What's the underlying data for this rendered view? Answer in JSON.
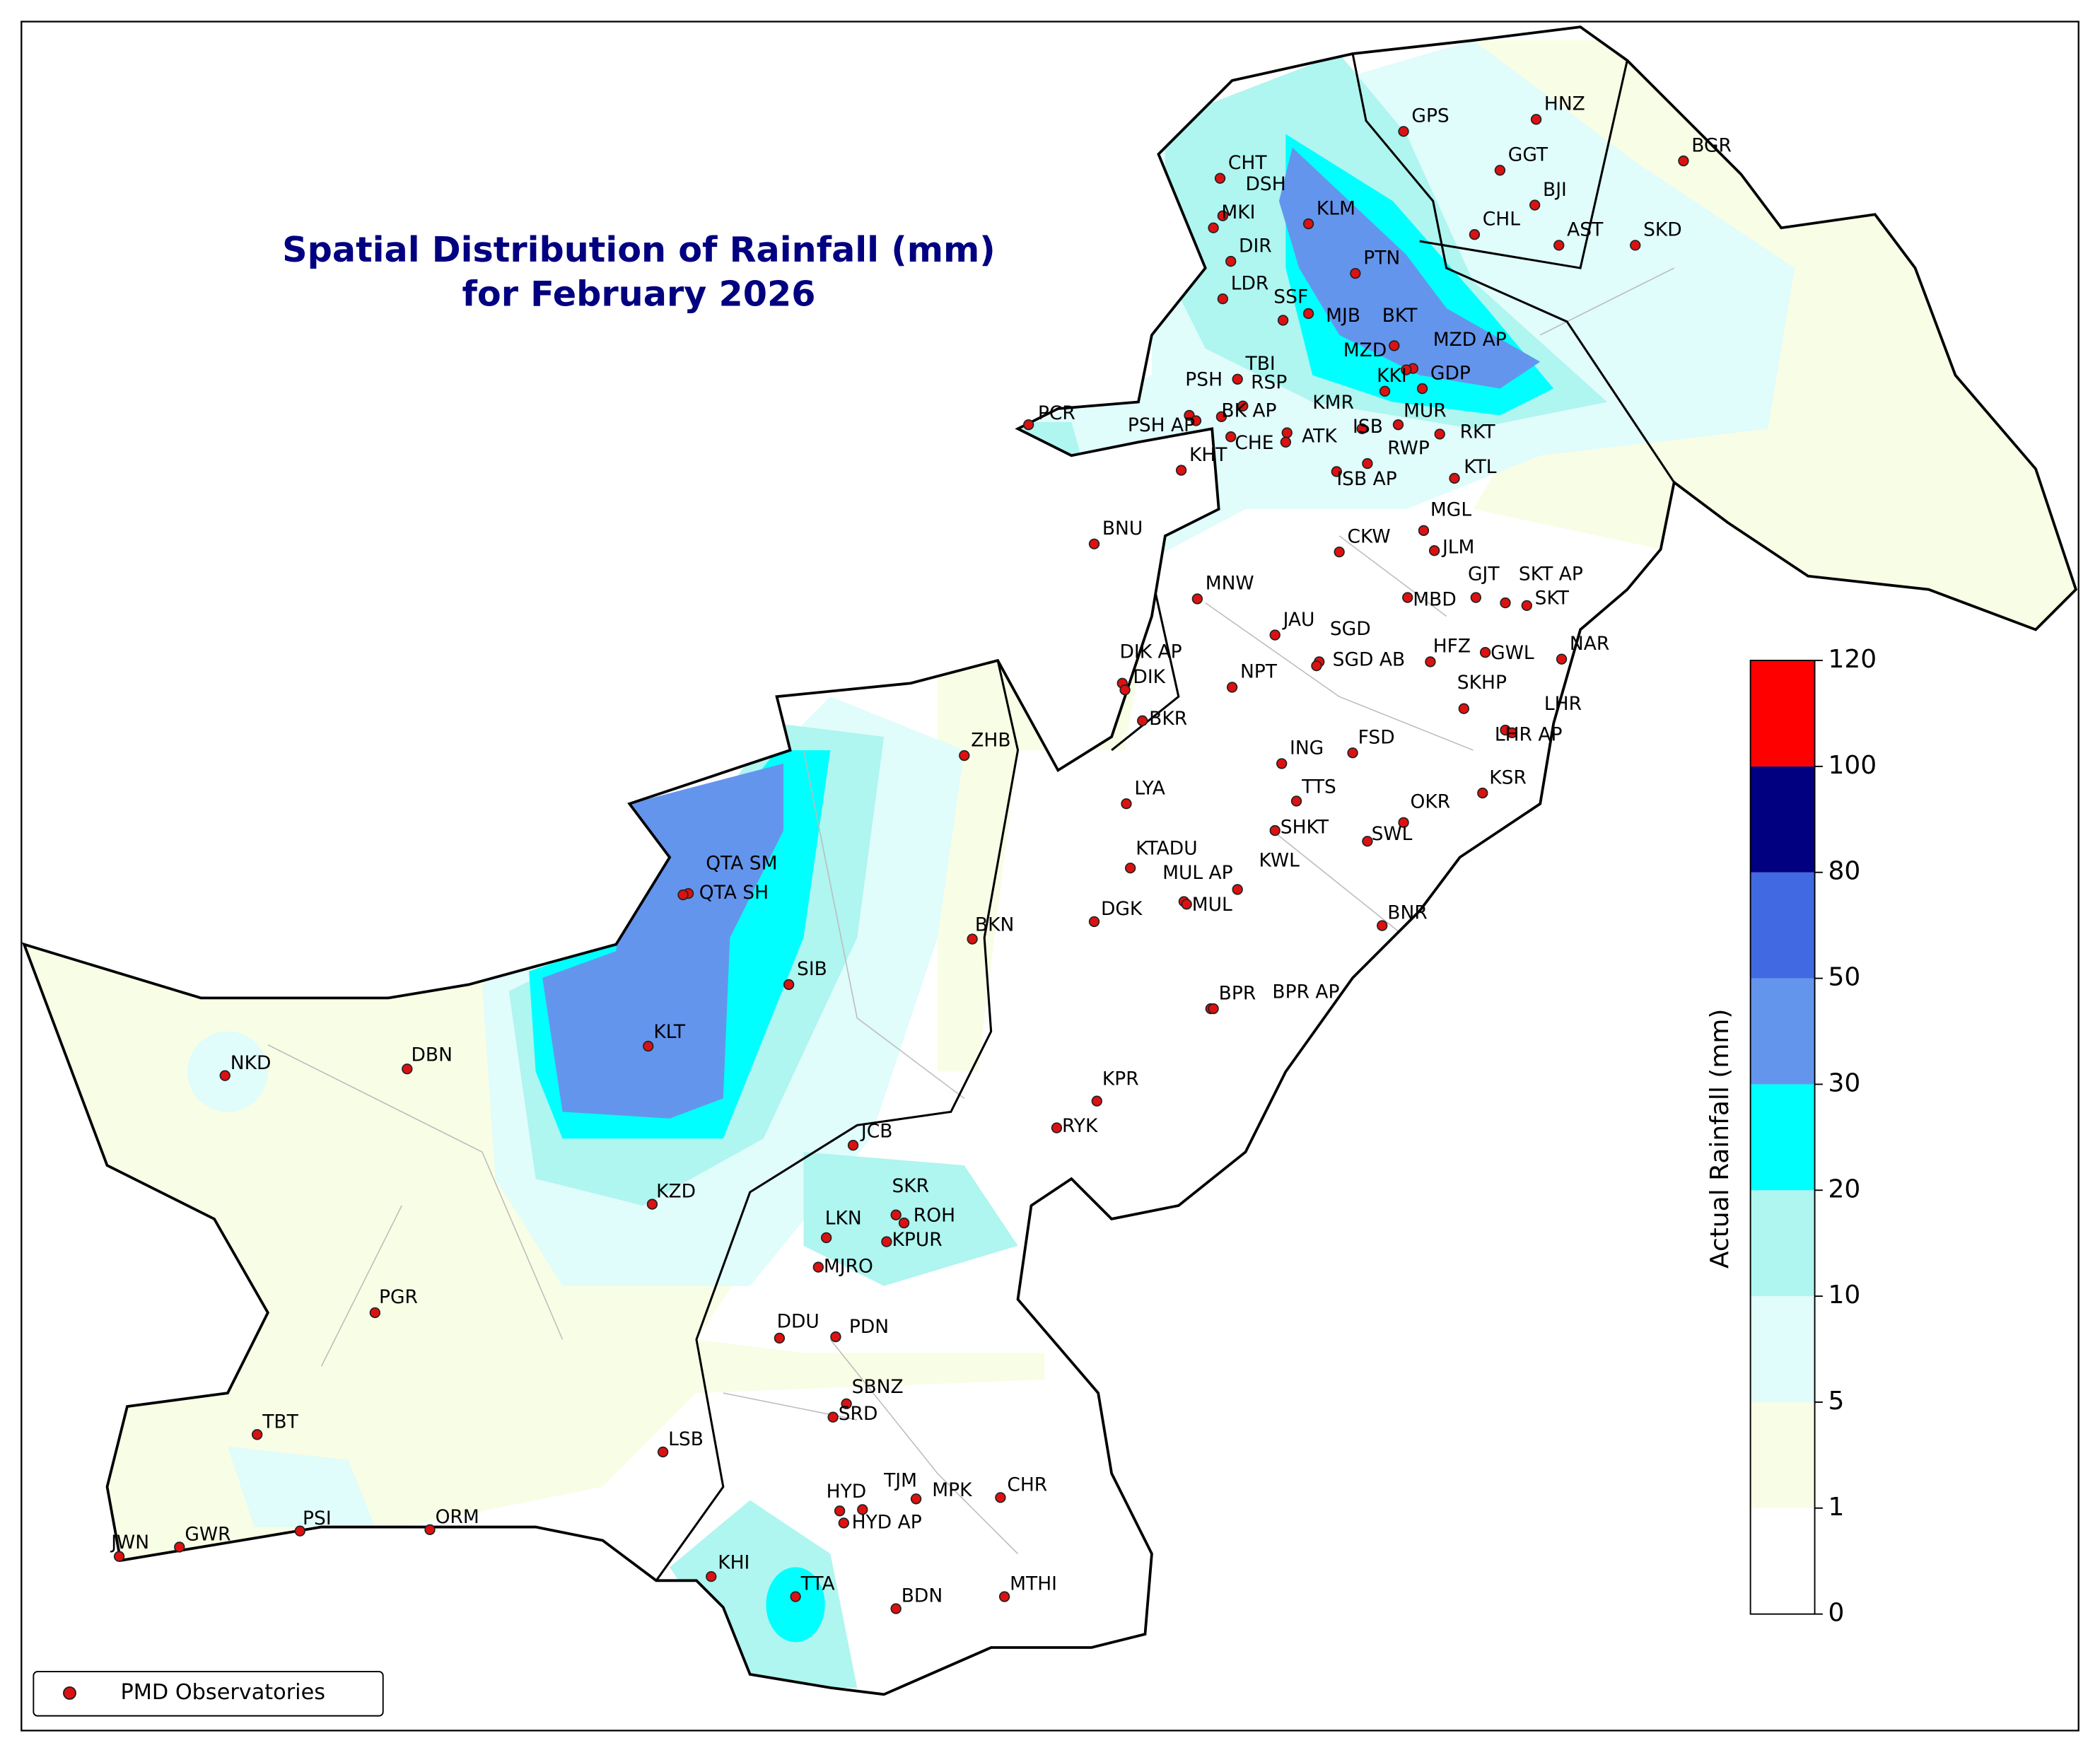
{
  "title": [
    "Spatial Distribution of Rainfall (mm)",
    "for February 2026"
  ],
  "colorbar": {
    "label": "Actual Rainfall (mm)",
    "ticks": [
      0,
      1,
      5,
      10,
      20,
      30,
      50,
      80,
      100,
      120
    ],
    "colors": [
      "#ffffff",
      "#f8fde6",
      "#e0fcfb",
      "#aff5f0",
      "#00ffff",
      "#6495ed",
      "#4169e1",
      "#000080",
      "#ff0000"
    ]
  },
  "legend": {
    "label": "PMD Observatories",
    "marker_color": "#dd1111"
  },
  "stations": [
    {
      "label": "GPS"
    },
    {
      "label": "HNZ"
    },
    {
      "label": "GGT"
    },
    {
      "label": "BGR"
    },
    {
      "label": "CHT"
    },
    {
      "label": "DSH"
    },
    {
      "label": "MKI"
    },
    {
      "label": "KLM"
    },
    {
      "label": "BJI"
    },
    {
      "label": "CHL"
    },
    {
      "label": "AST"
    },
    {
      "label": "SKD"
    },
    {
      "label": "DIR"
    },
    {
      "label": "PTN"
    },
    {
      "label": "LDR"
    },
    {
      "label": "SSF"
    },
    {
      "label": "MJB"
    },
    {
      "label": "BKT"
    },
    {
      "label": "MZD AP"
    },
    {
      "label": "MZD"
    },
    {
      "label": "KKI"
    },
    {
      "label": "GDP"
    },
    {
      "label": "TBI"
    },
    {
      "label": "PSH"
    },
    {
      "label": "RSP"
    },
    {
      "label": "PCR"
    },
    {
      "label": "KMR"
    },
    {
      "label": "PSH AP"
    },
    {
      "label": "BK AP"
    },
    {
      "label": "MUR"
    },
    {
      "label": "RKT"
    },
    {
      "label": "ISB"
    },
    {
      "label": "CHE"
    },
    {
      "label": "ATK"
    },
    {
      "label": "RWP"
    },
    {
      "label": "ISB AP"
    },
    {
      "label": "KHT"
    },
    {
      "label": "KTL"
    },
    {
      "label": "MGL"
    },
    {
      "label": "BNU"
    },
    {
      "label": "CKW"
    },
    {
      "label": "JLM"
    },
    {
      "label": "GJT"
    },
    {
      "label": "SKT AP"
    },
    {
      "label": "MBD"
    },
    {
      "label": "SKT"
    },
    {
      "label": "MNW"
    },
    {
      "label": "JAU"
    },
    {
      "label": "SGD"
    },
    {
      "label": "SGD AB"
    },
    {
      "label": "HFZ"
    },
    {
      "label": "GWL"
    },
    {
      "label": "NAR"
    },
    {
      "label": "DIK AP"
    },
    {
      "label": "DIK"
    },
    {
      "label": "NPT"
    },
    {
      "label": "SKHP"
    },
    {
      "label": "LHR"
    },
    {
      "label": "LHR AP"
    },
    {
      "label": "BKR"
    },
    {
      "label": "ZHB"
    },
    {
      "label": "ING"
    },
    {
      "label": "FSD"
    },
    {
      "label": "TTS"
    },
    {
      "label": "LYA"
    },
    {
      "label": "KSR"
    },
    {
      "label": "OKR"
    },
    {
      "label": "SHKT"
    },
    {
      "label": "SWL"
    },
    {
      "label": "KTADU"
    },
    {
      "label": "QTA SM"
    },
    {
      "label": "QTA SH"
    },
    {
      "label": "MUL AP"
    },
    {
      "label": "KWL"
    },
    {
      "label": "MUL"
    },
    {
      "label": "DGK"
    },
    {
      "label": "BNR"
    },
    {
      "label": "BKN"
    },
    {
      "label": "SIB"
    },
    {
      "label": "BPR"
    },
    {
      "label": "BPR AP"
    },
    {
      "label": "KLT"
    },
    {
      "label": "NKD"
    },
    {
      "label": "DBN"
    },
    {
      "label": "KPR"
    },
    {
      "label": "RYK"
    },
    {
      "label": "JCB"
    },
    {
      "label": "SKR"
    },
    {
      "label": "ROH"
    },
    {
      "label": "KZD"
    },
    {
      "label": "LKN"
    },
    {
      "label": "KPUR"
    },
    {
      "label": "MJRO"
    },
    {
      "label": "PGR"
    },
    {
      "label": "DDU"
    },
    {
      "label": "PDN"
    },
    {
      "label": "SBNZ"
    },
    {
      "label": "SRD"
    },
    {
      "label": "TBT"
    },
    {
      "label": "LSB"
    },
    {
      "label": "HYD"
    },
    {
      "label": "TJM"
    },
    {
      "label": "MPK"
    },
    {
      "label": "CHR"
    },
    {
      "label": "HYD AP"
    },
    {
      "label": "PSI"
    },
    {
      "label": "ORM"
    },
    {
      "label": "JWN"
    },
    {
      "label": "GWR"
    },
    {
      "label": "KHI"
    },
    {
      "label": "TTA"
    },
    {
      "label": "BDN"
    },
    {
      "label": "MTHI"
    }
  ]
}
